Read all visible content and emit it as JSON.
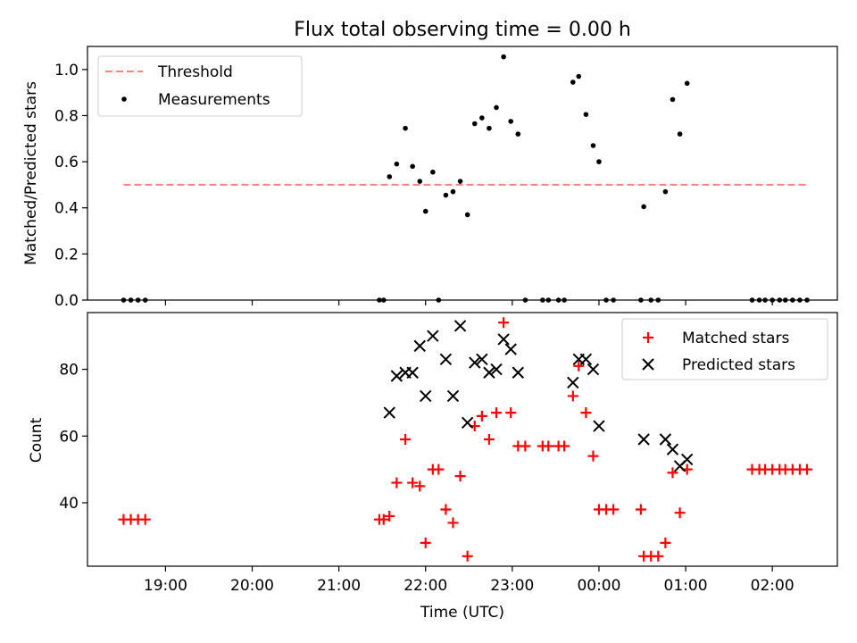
{
  "chart_data": [
    {
      "type": "scatter",
      "title": "Flux total observing time = 0.00 h",
      "ylabel": "Matched/Predicted stars",
      "xlabel": "",
      "xlim": [
        "18:06",
        "02:45"
      ],
      "ylim": [
        0,
        1.1
      ],
      "yticks": [
        0.0,
        0.2,
        0.4,
        0.6,
        0.8,
        1.0
      ],
      "ytick_labels": [
        "0.0",
        "0.2",
        "0.4",
        "0.6",
        "0.8",
        "1.0"
      ],
      "grid": false,
      "legend": "top-left",
      "threshold": {
        "name": "Threshold",
        "value": 0.5,
        "x_range": [
          "18:31",
          "02:24"
        ],
        "color": "#ff7f7f",
        "style": "dashed"
      },
      "series": [
        {
          "name": "Measurements",
          "color": "#000000",
          "marker": "dot",
          "points": [
            [
              "18:31",
              0.0
            ],
            [
              "18:36",
              0.0
            ],
            [
              "18:41",
              0.0
            ],
            [
              "18:46",
              0.0
            ],
            [
              "21:28",
              0.0
            ],
            [
              "21:31",
              0.0
            ],
            [
              "21:35",
              0.535
            ],
            [
              "21:40",
              0.59
            ],
            [
              "21:46",
              0.745
            ],
            [
              "21:51",
              0.58
            ],
            [
              "21:56",
              0.515
            ],
            [
              "22:00",
              0.385
            ],
            [
              "22:05",
              0.555
            ],
            [
              "22:09",
              0.0
            ],
            [
              "22:14",
              0.455
            ],
            [
              "22:19",
              0.47
            ],
            [
              "22:24",
              0.515
            ],
            [
              "22:29",
              0.37
            ],
            [
              "22:34",
              0.765
            ],
            [
              "22:39",
              0.79
            ],
            [
              "22:44",
              0.745
            ],
            [
              "22:49",
              0.835
            ],
            [
              "22:54",
              1.055
            ],
            [
              "22:59",
              0.775
            ],
            [
              "23:04",
              0.72
            ],
            [
              "23:09",
              0.0
            ],
            [
              "23:21",
              0.0
            ],
            [
              "23:25",
              0.0
            ],
            [
              "23:32",
              0.0
            ],
            [
              "23:36",
              0.0
            ],
            [
              "23:42",
              0.945
            ],
            [
              "23:46",
              0.97
            ],
            [
              "23:51",
              0.805
            ],
            [
              "23:56",
              0.67
            ],
            [
              "00:00",
              0.6
            ],
            [
              "00:05",
              0.0
            ],
            [
              "00:10",
              0.0
            ],
            [
              "00:29",
              0.0
            ],
            [
              "00:31",
              0.405
            ],
            [
              "00:36",
              0.0
            ],
            [
              "00:41",
              0.0
            ],
            [
              "00:46",
              0.47
            ],
            [
              "00:51",
              0.87
            ],
            [
              "00:56",
              0.72
            ],
            [
              "01:01",
              0.94
            ],
            [
              "01:46",
              0.0
            ],
            [
              "01:51",
              0.0
            ],
            [
              "01:55",
              0.0
            ],
            [
              "02:00",
              0.0
            ],
            [
              "02:05",
              0.0
            ],
            [
              "02:09",
              0.0
            ],
            [
              "02:14",
              0.0
            ],
            [
              "02:19",
              0.0
            ],
            [
              "02:24",
              0.0
            ]
          ]
        }
      ]
    },
    {
      "type": "scatter",
      "title": "",
      "ylabel": "Count",
      "xlabel": "Time (UTC)",
      "xlim": [
        "18:06",
        "02:45"
      ],
      "ylim": [
        21,
        97
      ],
      "yticks": [
        40,
        60,
        80
      ],
      "ytick_labels": [
        "40",
        "60",
        "80"
      ],
      "xtick_labels": [
        "19:00",
        "20:00",
        "21:00",
        "22:00",
        "23:00",
        "00:00",
        "01:00",
        "02:00"
      ],
      "grid": false,
      "legend": "top-right",
      "series": [
        {
          "name": "Matched stars",
          "color": "#ff0000",
          "marker": "plus",
          "points": [
            [
              "18:31",
              35
            ],
            [
              "18:36",
              35
            ],
            [
              "18:41",
              35
            ],
            [
              "18:46",
              35
            ],
            [
              "21:28",
              35
            ],
            [
              "21:31",
              35
            ],
            [
              "21:35",
              36
            ],
            [
              "21:40",
              46
            ],
            [
              "21:46",
              59
            ],
            [
              "21:51",
              46
            ],
            [
              "21:56",
              45
            ],
            [
              "22:00",
              28
            ],
            [
              "22:05",
              50
            ],
            [
              "22:09",
              50
            ],
            [
              "22:14",
              38
            ],
            [
              "22:19",
              34
            ],
            [
              "22:24",
              48
            ],
            [
              "22:29",
              24
            ],
            [
              "22:34",
              63
            ],
            [
              "22:39",
              66
            ],
            [
              "22:44",
              59
            ],
            [
              "22:49",
              67
            ],
            [
              "22:54",
              94
            ],
            [
              "22:59",
              67
            ],
            [
              "23:04",
              57
            ],
            [
              "23:09",
              57
            ],
            [
              "23:21",
              57
            ],
            [
              "23:25",
              57
            ],
            [
              "23:32",
              57
            ],
            [
              "23:36",
              57
            ],
            [
              "23:42",
              72
            ],
            [
              "23:46",
              81
            ],
            [
              "23:51",
              67
            ],
            [
              "23:56",
              54
            ],
            [
              "00:00",
              38
            ],
            [
              "00:05",
              38
            ],
            [
              "00:10",
              38
            ],
            [
              "00:29",
              38
            ],
            [
              "00:31",
              24
            ],
            [
              "00:36",
              24
            ],
            [
              "00:41",
              24
            ],
            [
              "00:46",
              28
            ],
            [
              "00:51",
              49
            ],
            [
              "00:56",
              37
            ],
            [
              "01:01",
              50
            ],
            [
              "01:46",
              50
            ],
            [
              "01:51",
              50
            ],
            [
              "01:55",
              50
            ],
            [
              "02:00",
              50
            ],
            [
              "02:05",
              50
            ],
            [
              "02:09",
              50
            ],
            [
              "02:14",
              50
            ],
            [
              "02:19",
              50
            ],
            [
              "02:24",
              50
            ]
          ]
        },
        {
          "name": "Predicted stars",
          "color": "#000000",
          "marker": "x",
          "points": [
            [
              "21:35",
              67
            ],
            [
              "21:40",
              78
            ],
            [
              "21:46",
              79
            ],
            [
              "21:51",
              79
            ],
            [
              "21:56",
              87
            ],
            [
              "22:00",
              72
            ],
            [
              "22:05",
              90
            ],
            [
              "22:14",
              83
            ],
            [
              "22:19",
              72
            ],
            [
              "22:24",
              93
            ],
            [
              "22:29",
              64
            ],
            [
              "22:34",
              82
            ],
            [
              "22:39",
              83
            ],
            [
              "22:44",
              79
            ],
            [
              "22:49",
              80
            ],
            [
              "22:54",
              89
            ],
            [
              "22:59",
              86
            ],
            [
              "23:04",
              79
            ],
            [
              "23:42",
              76
            ],
            [
              "23:46",
              83
            ],
            [
              "23:51",
              83
            ],
            [
              "23:56",
              80
            ],
            [
              "00:00",
              63
            ],
            [
              "00:31",
              59
            ],
            [
              "00:46",
              59
            ],
            [
              "00:51",
              56
            ],
            [
              "00:56",
              51
            ],
            [
              "01:01",
              53
            ]
          ]
        }
      ]
    }
  ]
}
